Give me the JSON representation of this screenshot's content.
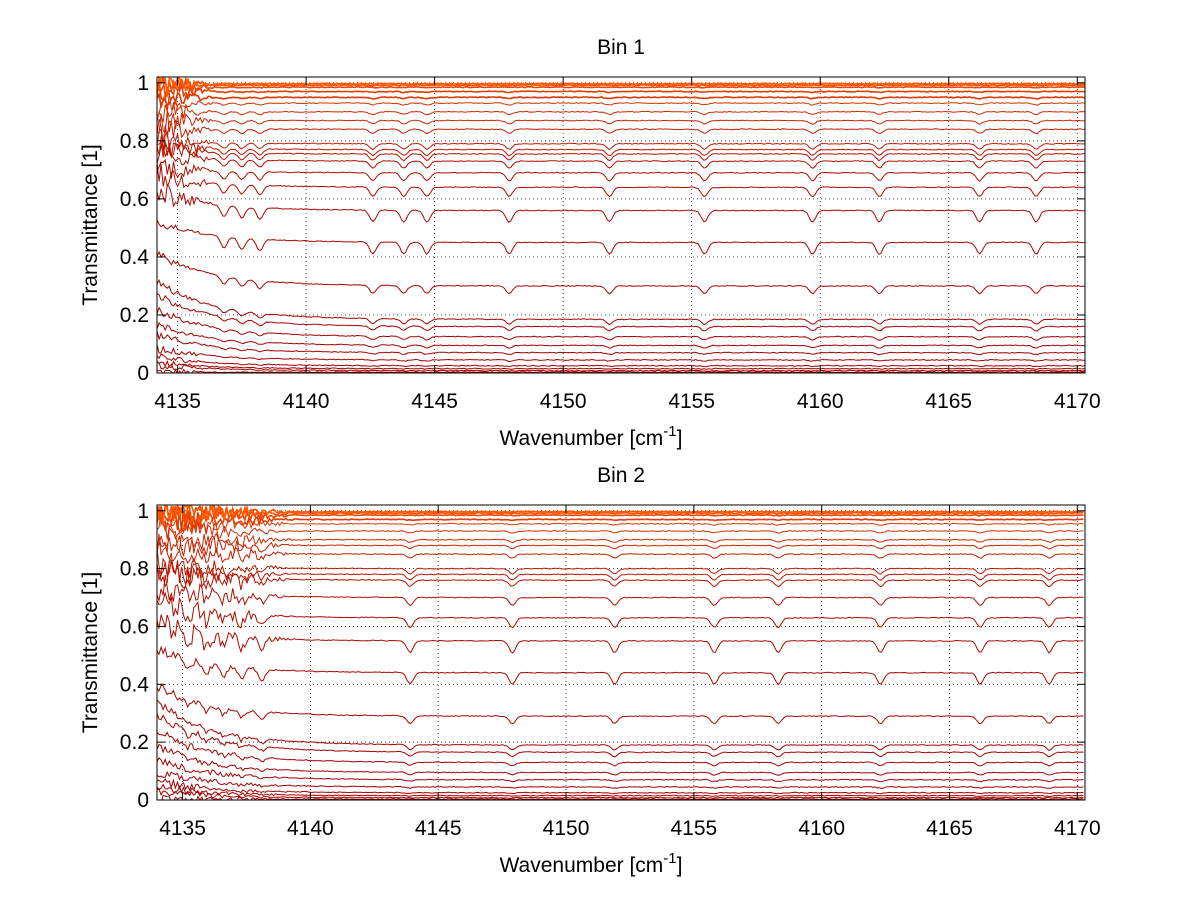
{
  "figure": {
    "background": "#ffffff"
  },
  "chart_data": [
    {
      "type": "line",
      "title": "Bin 1",
      "xlabel": "Wavenumber [cm",
      "xlabel_sup": "-1",
      "xlabel_end": "]",
      "ylabel": "Transmittance [1]",
      "xlim": [
        4134.2,
        4170.3
      ],
      "ylim": [
        0,
        1.02
      ],
      "xticks": [
        4135,
        4140,
        4145,
        4150,
        4155,
        4160,
        4165,
        4170
      ],
      "yticks": [
        0,
        0.2,
        0.4,
        0.6,
        0.8,
        1
      ],
      "ytick_labels": [
        "0",
        "0.2",
        "0.4",
        "0.6",
        "0.8",
        "1"
      ],
      "grid": true,
      "grid_style": "dotted",
      "line_color_dark": "#a30000",
      "line_color_bright": "#ff5a00",
      "series_levels": [
        0.003,
        0.008,
        0.015,
        0.025,
        0.045,
        0.07,
        0.095,
        0.125,
        0.16,
        0.185,
        0.3,
        0.45,
        0.56,
        0.64,
        0.69,
        0.73,
        0.755,
        0.77,
        0.79,
        0.84,
        0.87,
        0.9,
        0.93,
        0.95,
        0.97,
        0.985,
        0.992,
        0.997
      ],
      "series_start_offsets": [
        0.0,
        0.02,
        0.02,
        0.03,
        0.04,
        0.06,
        0.07,
        0.09,
        0.11,
        0.13,
        0.11,
        0.07,
        0.06,
        0.04,
        0.02,
        0.02,
        0.01,
        0.01,
        0.01,
        0.0,
        0.0,
        0.0,
        0.0,
        0.0,
        0.0,
        0.0,
        0.0,
        0.0
      ],
      "absorption_lines": [
        4136.8,
        4137.5,
        4138.2,
        4142.6,
        4143.8,
        4144.7,
        4147.9,
        4151.8,
        4155.5,
        4159.7,
        4162.3,
        4166.2,
        4168.4
      ],
      "noise_region_end": 4136.5
    },
    {
      "type": "line",
      "title": "Bin 2",
      "xlabel": "Wavenumber [cm",
      "xlabel_sup": "-1",
      "xlabel_end": "]",
      "ylabel": "Transmittance [1]",
      "xlim": [
        4134.0,
        4170.3
      ],
      "ylim": [
        0,
        1.02
      ],
      "xticks": [
        4135,
        4140,
        4145,
        4150,
        4155,
        4160,
        4165,
        4170
      ],
      "yticks": [
        0,
        0.2,
        0.4,
        0.6,
        0.8,
        1
      ],
      "ytick_labels": [
        "0",
        "0.2",
        "0.4",
        "0.6",
        "0.8",
        "1"
      ],
      "grid": true,
      "grid_style": "dotted",
      "line_color_dark": "#a30000",
      "line_color_bright": "#ff5a00",
      "series_levels": [
        0.003,
        0.008,
        0.015,
        0.025,
        0.045,
        0.07,
        0.095,
        0.13,
        0.165,
        0.19,
        0.29,
        0.44,
        0.55,
        0.63,
        0.7,
        0.76,
        0.78,
        0.8,
        0.85,
        0.88,
        0.9,
        0.93,
        0.955,
        0.97,
        0.985,
        0.992,
        0.997
      ],
      "series_start_offsets": [
        0.0,
        0.02,
        0.03,
        0.04,
        0.05,
        0.07,
        0.09,
        0.11,
        0.13,
        0.15,
        0.1,
        0.08,
        0.06,
        0.05,
        0.04,
        0.03,
        0.02,
        0.02,
        0.01,
        0.01,
        0.0,
        0.0,
        0.0,
        0.0,
        0.0,
        0.0,
        0.0
      ],
      "absorption_lines": [
        4135.2,
        4135.9,
        4136.6,
        4137.3,
        4138.1,
        4143.9,
        4147.9,
        4151.9,
        4155.8,
        4158.3,
        4162.3,
        4166.2,
        4168.9
      ],
      "noise_region_end": 4139.5
    }
  ]
}
